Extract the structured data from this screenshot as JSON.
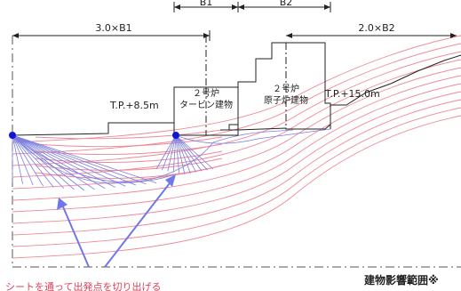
{
  "dimensions": {
    "top_b1": "B1",
    "top_b2": "B2",
    "left_span": "3.0×B1",
    "right_span": "2.0×B2"
  },
  "elevations": {
    "turbine_level": "T.P.+8.5m",
    "reactor_level": "T.P.+15.0m"
  },
  "buildings": {
    "turbine": [
      "２号炉",
      "タービン建物"
    ],
    "reactor": [
      "２号炉",
      "原子炉建物"
    ]
  },
  "annotations": {
    "range_label": "建物影響範囲※",
    "arrow_note": "シートを通って出発点を切り出げる"
  },
  "colors": {
    "slip_lines": "#ee8a96",
    "fan_lines": "#7b7fe0",
    "arrow": "#6f78e8",
    "marker": "#1414d0",
    "structure": "#222222",
    "note_text": "#e0405a"
  }
}
